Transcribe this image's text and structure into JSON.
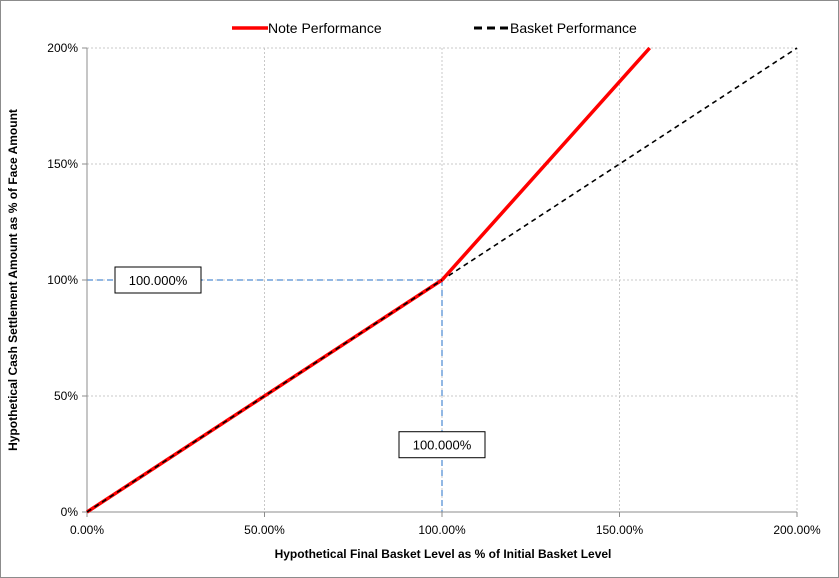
{
  "chart_data": {
    "type": "line",
    "xlabel": "Hypothetical Final Basket Level as % of Initial Basket Level",
    "ylabel": "Hypothetical Cash Settlement Amount as % of Face Amount",
    "xlim": [
      0,
      200
    ],
    "ylim": [
      0,
      200
    ],
    "x_ticks": [
      0,
      50,
      100,
      150,
      200
    ],
    "x_tick_labels": [
      "0.00%",
      "50.00%",
      "100.00%",
      "150.00%",
      "200.00%"
    ],
    "y_ticks": [
      0,
      50,
      100,
      150,
      200
    ],
    "y_tick_labels": [
      "0%",
      "50%",
      "100%",
      "150%",
      "200%"
    ],
    "grid": true,
    "legend_position": "top",
    "series": [
      {
        "name": "Note Performance",
        "color": "#ff0000",
        "style": "solid",
        "x": [
          0,
          100,
          158.5
        ],
        "y": [
          0,
          100,
          200
        ]
      },
      {
        "name": "Basket Performance",
        "color": "#000000",
        "style": "dashed",
        "x": [
          0,
          200
        ],
        "y": [
          0,
          200
        ]
      }
    ],
    "reference_lines": {
      "x": 100,
      "y": 100,
      "color": "#6fa0dc"
    },
    "annotations": [
      {
        "text": "100.000%",
        "x": 20,
        "y": 100,
        "anchor": "y"
      },
      {
        "text": "100.000%",
        "x": 100,
        "y": 29,
        "anchor": "x"
      }
    ]
  }
}
